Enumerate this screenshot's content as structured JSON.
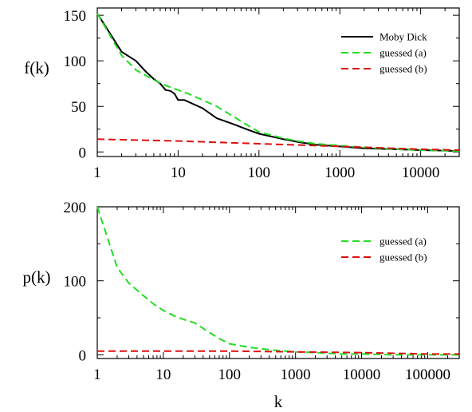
{
  "chart_data": [
    {
      "type": "line",
      "xscale": "log",
      "xlim": [
        1,
        30000
      ],
      "ylim": [
        -5,
        158
      ],
      "xlabel": "",
      "ylabel": "f(k)",
      "xticks": [
        1,
        10,
        100,
        1000,
        10000
      ],
      "xtick_labels": [
        "1",
        "10",
        "100",
        "1000",
        "10000"
      ],
      "yticks": [
        0,
        50,
        100,
        150
      ],
      "ytick_labels": [
        "0",
        "50",
        "100",
        "150"
      ],
      "legend_position": "top-right",
      "series": [
        {
          "name": "Moby Dick",
          "color": "#000000",
          "dash": "solid",
          "points": [
            [
              1,
              152
            ],
            [
              2,
              110
            ],
            [
              3,
              100
            ],
            [
              4,
              88
            ],
            [
              5,
              80
            ],
            [
              6,
              75
            ],
            [
              7,
              68
            ],
            [
              8,
              67
            ],
            [
              9,
              64
            ],
            [
              10,
              57
            ],
            [
              12,
              57
            ],
            [
              15,
              53
            ],
            [
              20,
              48
            ],
            [
              25,
              42
            ],
            [
              30,
              37
            ],
            [
              40,
              33
            ],
            [
              50,
              30
            ],
            [
              70,
              25
            ],
            [
              100,
              20
            ],
            [
              200,
              14
            ],
            [
              300,
              11
            ],
            [
              500,
              8
            ],
            [
              1000,
              6
            ],
            [
              2000,
              4
            ],
            [
              5000,
              3
            ],
            [
              10000,
              2
            ],
            [
              20000,
              1.5
            ],
            [
              30000,
              1
            ]
          ]
        },
        {
          "name": "guessed (a)",
          "color": "#22dd22",
          "dash": "dashed",
          "points": [
            [
              1,
              152
            ],
            [
              2,
              106
            ],
            [
              3,
              90
            ],
            [
              5,
              79
            ],
            [
              7,
              73
            ],
            [
              10,
              68
            ],
            [
              15,
              62
            ],
            [
              20,
              57
            ],
            [
              30,
              50
            ],
            [
              50,
              38
            ],
            [
              70,
              30
            ],
            [
              100,
              22
            ],
            [
              200,
              15
            ],
            [
              300,
              12
            ],
            [
              500,
              9
            ],
            [
              1000,
              7
            ],
            [
              2000,
              5
            ],
            [
              5000,
              3
            ],
            [
              10000,
              2
            ],
            [
              30000,
              1
            ]
          ]
        },
        {
          "name": "guessed (b)",
          "color": "#dd1111",
          "dash": "dashed",
          "points": [
            [
              1,
              14
            ],
            [
              10,
              12
            ],
            [
              100,
              9
            ],
            [
              1000,
              6
            ],
            [
              10000,
              3
            ],
            [
              30000,
              2
            ]
          ]
        }
      ]
    },
    {
      "type": "line",
      "xscale": "log",
      "xlim": [
        1,
        300000
      ],
      "ylim": [
        -5,
        200
      ],
      "xlabel": "k",
      "ylabel": "p(k)",
      "xticks": [
        1,
        10,
        100,
        1000,
        10000,
        100000
      ],
      "xtick_labels": [
        "1",
        "10",
        "100",
        "1000",
        "10000",
        "100000"
      ],
      "yticks": [
        0,
        100,
        200
      ],
      "ytick_labels": [
        "0",
        "100",
        "200"
      ],
      "legend_position": "top-right",
      "series": [
        {
          "name": "guessed (a)",
          "color": "#22dd22",
          "dash": "dashed",
          "points": [
            [
              1,
              200
            ],
            [
              2,
              118
            ],
            [
              3,
              97
            ],
            [
              5,
              80
            ],
            [
              7,
              69
            ],
            [
              10,
              60
            ],
            [
              15,
              52
            ],
            [
              20,
              48
            ],
            [
              30,
              43
            ],
            [
              50,
              30
            ],
            [
              70,
              22
            ],
            [
              100,
              15
            ],
            [
              200,
              10
            ],
            [
              500,
              6
            ],
            [
              1000,
              4
            ],
            [
              2000,
              3
            ],
            [
              5000,
              1
            ],
            [
              10000,
              1
            ],
            [
              30000,
              0
            ],
            [
              100000,
              0
            ],
            [
              300000,
              0
            ]
          ]
        },
        {
          "name": "guessed (b)",
          "color": "#dd1111",
          "dash": "dashed",
          "points": [
            [
              1,
              5
            ],
            [
              10,
              5
            ],
            [
              100,
              5
            ],
            [
              1000,
              4
            ],
            [
              10000,
              3
            ],
            [
              100000,
              1
            ],
            [
              300000,
              1
            ]
          ]
        }
      ]
    }
  ]
}
